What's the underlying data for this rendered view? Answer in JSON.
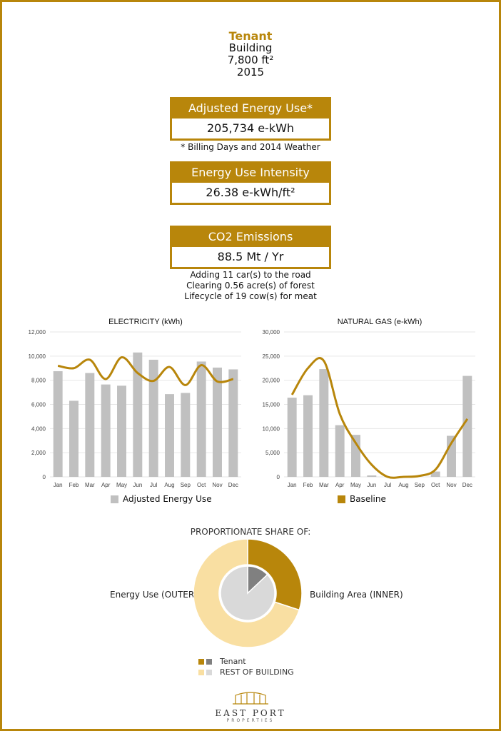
{
  "header": {
    "tenant": "Tenant",
    "building": "Building",
    "area": "7,800 ft²",
    "year": "2015"
  },
  "metrics": {
    "energy_use": {
      "title": "Adjusted Energy Use*",
      "value": "205,734 e-kWh",
      "note": "* Billing Days and 2014 Weather"
    },
    "intensity": {
      "title": "Energy Use Intensity",
      "value": "26.38 e-kWh/ft²"
    },
    "co2": {
      "title": "CO2 Emissions",
      "value": "88.5 Mt / Yr",
      "notes": [
        "Adding 11 car(s) to the road",
        "Clearing 0.56 acre(s) of forest",
        "Lifecycle of 19 cow(s) for meat"
      ]
    }
  },
  "colors": {
    "gold": "#b8860b",
    "bar": "#c0c0c0",
    "light_gold": "#f9dfa2",
    "grey_dark": "#808080",
    "grey_light": "#d9d9d9"
  },
  "chart_data": [
    {
      "type": "bar",
      "title": "ELECTRICITY (kWh)",
      "categories": [
        "Jan",
        "Feb",
        "Mar",
        "Apr",
        "May",
        "Jun",
        "Jul",
        "Aug",
        "Sep",
        "Oct",
        "Nov",
        "Dec"
      ],
      "ylim": [
        0,
        12000
      ],
      "yticks": [
        "0",
        "2,000",
        "4,000",
        "6,000",
        "8,000",
        "10,000",
        "12,000"
      ],
      "series": [
        {
          "name": "Adjusted Energy Use",
          "kind": "bar",
          "values": [
            8750,
            6300,
            8600,
            7650,
            7550,
            10300,
            9700,
            6850,
            6950,
            9550,
            9050,
            8900
          ]
        },
        {
          "name": "Baseline",
          "kind": "line",
          "values": [
            9200,
            9000,
            9700,
            8100,
            9900,
            8600,
            7950,
            9100,
            7600,
            9250,
            7900,
            8100
          ]
        }
      ]
    },
    {
      "type": "bar",
      "title": "NATURAL GAS (e-kWh)",
      "categories": [
        "Jan",
        "Feb",
        "Mar",
        "Apr",
        "May",
        "Jun",
        "Jul",
        "Aug",
        "Sep",
        "Oct",
        "Nov",
        "Dec"
      ],
      "ylim": [
        0,
        30000
      ],
      "yticks": [
        "0",
        "5,000",
        "10,000",
        "15,000",
        "20,000",
        "25,000",
        "30,000"
      ],
      "series": [
        {
          "name": "Adjusted Energy Use",
          "kind": "bar",
          "values": [
            16400,
            16900,
            22300,
            10700,
            8700,
            300,
            0,
            0,
            0,
            1100,
            8500,
            20900
          ]
        },
        {
          "name": "Baseline",
          "kind": "line",
          "values": [
            17000,
            22500,
            24000,
            13000,
            7000,
            2500,
            0,
            0,
            200,
            1500,
            7000,
            12000
          ]
        }
      ]
    },
    {
      "type": "pie",
      "title": "PROPORTIONATE SHARE OF:",
      "outer_label": "Energy Use (OUTER)",
      "inner_label": "Building Area (INNER)",
      "outer": [
        {
          "name": "Tenant",
          "value": 30
        },
        {
          "name": "REST OF BUILDING",
          "value": 70
        }
      ],
      "inner": [
        {
          "name": "Tenant",
          "value": 13
        },
        {
          "name": "REST OF BUILDING",
          "value": 87
        }
      ]
    }
  ],
  "legends": {
    "adjusted": "Adjusted Energy Use",
    "baseline": "Baseline",
    "tenant": "Tenant",
    "rest": "REST OF BUILDING"
  },
  "logo": {
    "name": "EAST PORT",
    "sub": "PROPERTIES"
  }
}
